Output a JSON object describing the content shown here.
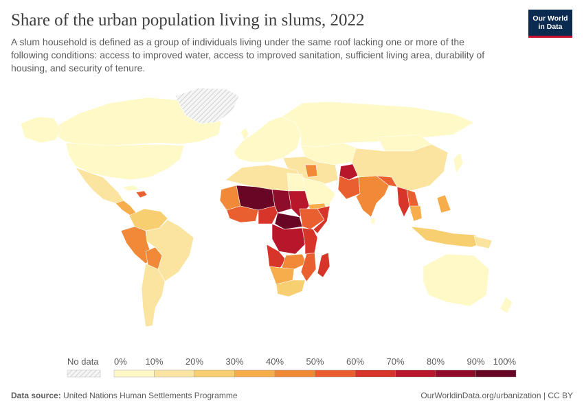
{
  "header": {
    "title": "Share of the urban population living in slums, 2022",
    "subtitle": "A slum household is defined as a group of individuals living under the same roof lacking one or more of the following conditions: access to improved water, access to improved sanitation, sufficient living area, durability of housing, and security of tenure."
  },
  "logo": {
    "line1": "Our World",
    "line2": "in Data",
    "bg": "#0b2a4f",
    "accent": "#c8102e"
  },
  "legend": {
    "no_data_label": "No data",
    "ticks": [
      "0%",
      "10%",
      "20%",
      "30%",
      "40%",
      "50%",
      "60%",
      "70%",
      "80%",
      "90%",
      "100%"
    ],
    "bins": [
      {
        "range": [
          0,
          10
        ],
        "color": "#fef9c6"
      },
      {
        "range": [
          10,
          20
        ],
        "color": "#fae4a0"
      },
      {
        "range": [
          20,
          30
        ],
        "color": "#f8cf70"
      },
      {
        "range": [
          30,
          40
        ],
        "color": "#f7ad4b"
      },
      {
        "range": [
          40,
          50
        ],
        "color": "#f08a38"
      },
      {
        "range": [
          50,
          60
        ],
        "color": "#ea5f30"
      },
      {
        "range": [
          60,
          70
        ],
        "color": "#d8352a"
      },
      {
        "range": [
          70,
          80
        ],
        "color": "#b8162a"
      },
      {
        "range": [
          80,
          90
        ],
        "color": "#8f0d2b"
      },
      {
        "range": [
          90,
          100
        ],
        "color": "#6a0625"
      }
    ]
  },
  "footer": {
    "source_label": "Data source:",
    "source_text": "United Nations Human Settlements Programme",
    "license": "OurWorldinData.org/urbanization | CC BY"
  }
}
